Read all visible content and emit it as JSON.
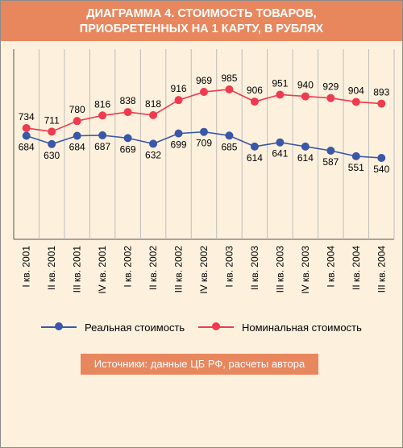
{
  "title_line1": "ДИАГРАММА 4. СТОИМОСТЬ ТОВАРОВ,",
  "title_line2": "ПРИОБРЕТЕННЫХ НА 1 КАРТУ, В РУБЛЯХ",
  "source": "Источники: данные  ЦБ РФ, расчеты автора",
  "colors": {
    "header_bg": "#e8875e",
    "background": "#fdf1de",
    "real": "#3a57a8",
    "nominal": "#ee3b4f"
  },
  "chart_data": {
    "type": "line",
    "title": "ДИАГРАММА 4. СТОИМОСТЬ ТОВАРОВ, ПРИОБРЕТЕННЫХ НА 1 КАРТУ, В РУБЛЯХ",
    "categories": [
      "I кв. 2001",
      "II кв. 2001",
      "III кв. 2001",
      "IV кв. 2001",
      "I кв. 2002",
      "II кв. 2002",
      "III кв. 2002",
      "IV кв. 2002",
      "I кв. 2003",
      "II кв. 2003",
      "III кв. 2003",
      "IV кв. 2003",
      "I кв. 2004",
      "II кв. 2004",
      "III кв. 2004"
    ],
    "series": [
      {
        "name": "Реальная стоимость",
        "color": "#3a57a8",
        "values": [
          684,
          630,
          684,
          687,
          669,
          632,
          699,
          709,
          685,
          614,
          641,
          614,
          587,
          551,
          540
        ]
      },
      {
        "name": "Номинальная стоимость",
        "color": "#ee3b4f",
        "values": [
          734,
          711,
          780,
          816,
          838,
          818,
          916,
          969,
          985,
          906,
          951,
          940,
          929,
          904,
          893
        ]
      }
    ],
    "ylim": [
      0,
      1200
    ],
    "grid": "vertical",
    "legend": "bottom"
  }
}
